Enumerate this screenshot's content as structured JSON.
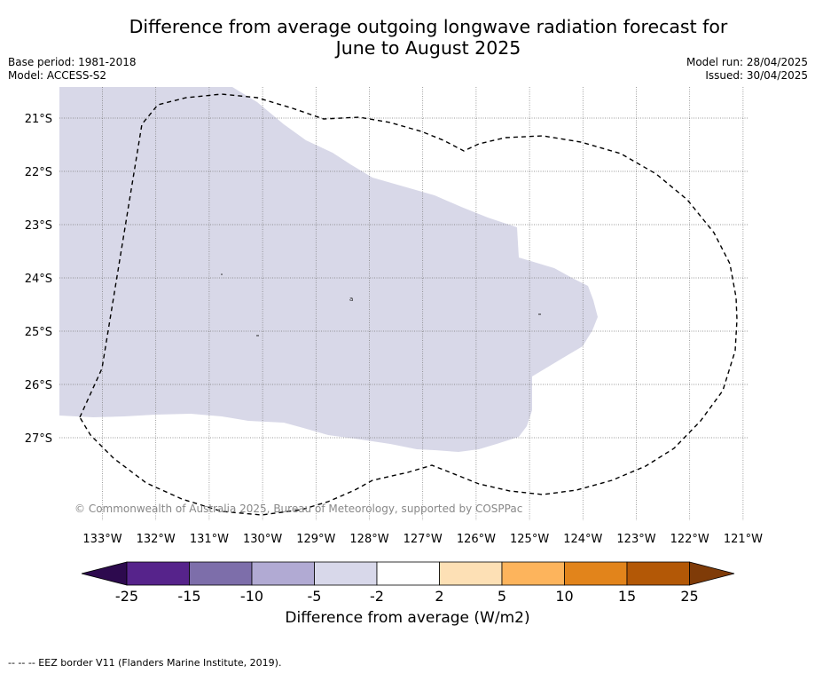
{
  "title_line1": "Difference from average outgoing longwave radiation forecast for",
  "title_line2": "June to August 2025",
  "base_period": "Base period: 1981-2018",
  "model": "Model: ACCESS-S2",
  "model_run": "Model run: 28/04/2025",
  "issued": "Issued: 30/04/2025",
  "copyright": "© Commonwealth of Australia 2025, Bureau of Meteorology, supported by COSPPac",
  "latitudes": [
    "21°S",
    "22°S",
    "23°S",
    "24°S",
    "25°S",
    "26°S",
    "27°S"
  ],
  "longitudes": [
    "133°W",
    "132°W",
    "131°W",
    "130°W",
    "129°W",
    "128°W",
    "127°W",
    "126°W",
    "125°W",
    "124°W",
    "123°W",
    "122°W",
    "121°W"
  ],
  "colorbar": {
    "title": "Difference from average (W/m2)",
    "ticks": [
      "-25",
      "-15",
      "-10",
      "-5",
      "-2",
      "2",
      "5",
      "10",
      "15",
      "25"
    ],
    "colors": [
      "#2d0a4e",
      "#56238b",
      "#7d6eaa",
      "#b1aad3",
      "#d8d8ea",
      "#ffffff",
      "#fde0b5",
      "#fdb45c",
      "#e2841b",
      "#b35806",
      "#7f3b08"
    ]
  },
  "shaded_category": "-5 to -2",
  "footer": "--  --  -- EEZ border V11 (Flanders Marine Institute, 2019)."
}
